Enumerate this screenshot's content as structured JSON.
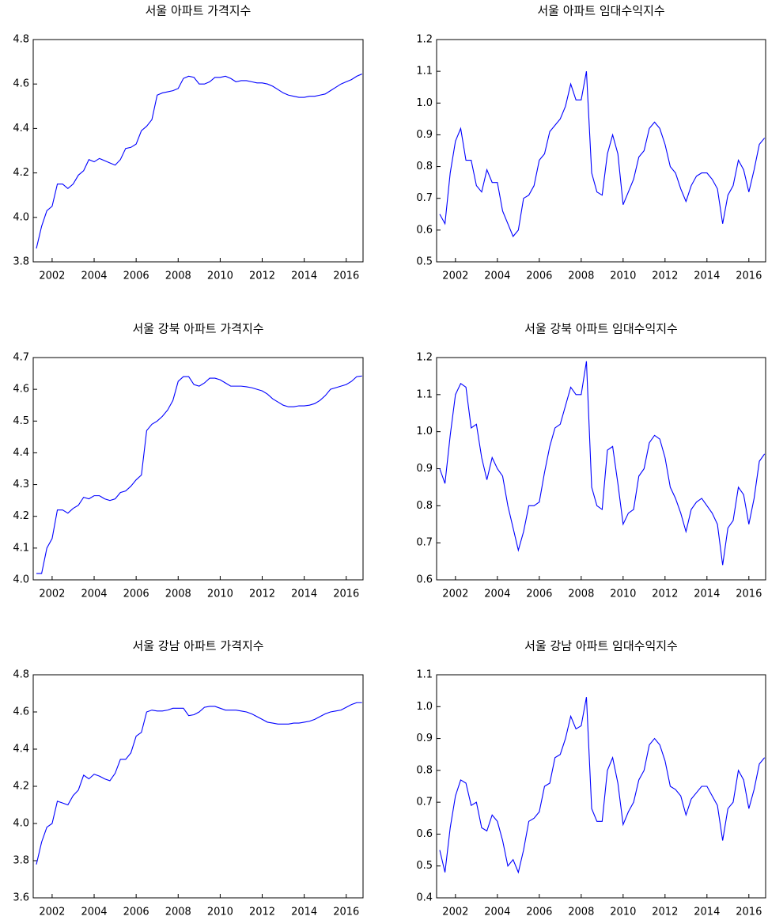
{
  "chart_data": [
    {
      "type": "line",
      "title": "서울 아파트 가격지수",
      "color": "#0000ff",
      "x": [
        2001.25,
        2001.5,
        2001.75,
        2002,
        2002.25,
        2002.5,
        2002.75,
        2003,
        2003.25,
        2003.5,
        2003.75,
        2004,
        2004.25,
        2004.5,
        2004.75,
        2005,
        2005.25,
        2005.5,
        2005.75,
        2006,
        2006.25,
        2006.5,
        2006.75,
        2007,
        2007.25,
        2007.5,
        2007.75,
        2008,
        2008.25,
        2008.5,
        2008.75,
        2009,
        2009.25,
        2009.5,
        2009.75,
        2010,
        2010.25,
        2010.5,
        2010.75,
        2011,
        2011.25,
        2011.5,
        2011.75,
        2012,
        2012.25,
        2012.5,
        2012.75,
        2013,
        2013.25,
        2013.5,
        2013.75,
        2014,
        2014.25,
        2014.5,
        2014.75,
        2015,
        2015.25,
        2015.5,
        2015.75,
        2016,
        2016.25,
        2016.5,
        2016.75
      ],
      "values": [
        3.86,
        3.96,
        4.03,
        4.05,
        4.15,
        4.15,
        4.13,
        4.15,
        4.19,
        4.21,
        4.26,
        4.25,
        4.265,
        4.255,
        4.245,
        4.235,
        4.26,
        4.31,
        4.315,
        4.33,
        4.39,
        4.41,
        4.44,
        4.55,
        4.56,
        4.565,
        4.57,
        4.58,
        4.625,
        4.635,
        4.63,
        4.6,
        4.6,
        4.61,
        4.63,
        4.63,
        4.635,
        4.625,
        4.61,
        4.615,
        4.615,
        4.61,
        4.605,
        4.605,
        4.6,
        4.59,
        4.575,
        4.56,
        4.55,
        4.545,
        4.54,
        4.54,
        4.545,
        4.545,
        4.55,
        4.555,
        4.57,
        4.585,
        4.6,
        4.61,
        4.62,
        4.635,
        4.645
      ],
      "xlim": [
        2001.1,
        2016.8
      ],
      "xticks": [
        2002,
        2004,
        2006,
        2008,
        2010,
        2012,
        2014,
        2016
      ],
      "ylim": [
        3.8,
        4.8
      ],
      "yticks": [
        3.8,
        {
          "value": 4,
          "label": "4.0"
        },
        4.2,
        4.4,
        4.6,
        4.8
      ]
    },
    {
      "type": "line",
      "title": "서울 아파트 임대수익지수",
      "color": "#0000ff",
      "x": [
        2001.25,
        2001.5,
        2001.75,
        2002,
        2002.25,
        2002.5,
        2002.75,
        2003,
        2003.25,
        2003.5,
        2003.75,
        2004,
        2004.25,
        2004.5,
        2004.75,
        2005,
        2005.25,
        2005.5,
        2005.75,
        2006,
        2006.25,
        2006.5,
        2006.75,
        2007,
        2007.25,
        2007.5,
        2007.75,
        2008,
        2008.25,
        2008.5,
        2008.75,
        2009,
        2009.25,
        2009.5,
        2009.75,
        2010,
        2010.25,
        2010.5,
        2010.75,
        2011,
        2011.25,
        2011.5,
        2011.75,
        2012,
        2012.25,
        2012.5,
        2012.75,
        2013,
        2013.25,
        2013.5,
        2013.75,
        2014,
        2014.25,
        2014.5,
        2014.75,
        2015,
        2015.25,
        2015.5,
        2015.75,
        2016,
        2016.25,
        2016.5,
        2016.75
      ],
      "values": [
        0.65,
        0.62,
        0.78,
        0.88,
        0.92,
        0.82,
        0.82,
        0.74,
        0.72,
        0.79,
        0.75,
        0.75,
        0.66,
        0.62,
        0.58,
        0.6,
        0.7,
        0.71,
        0.74,
        0.82,
        0.84,
        0.91,
        0.93,
        0.95,
        0.99,
        1.06,
        1.01,
        1.01,
        1.1,
        0.78,
        0.72,
        0.71,
        0.84,
        0.9,
        0.84,
        0.68,
        0.72,
        0.76,
        0.83,
        0.85,
        0.92,
        0.94,
        0.92,
        0.87,
        0.8,
        0.78,
        0.73,
        0.69,
        0.74,
        0.77,
        0.78,
        0.78,
        0.76,
        0.73,
        0.62,
        0.71,
        0.74,
        0.82,
        0.79,
        0.72,
        0.79,
        0.87,
        0.89
      ],
      "xlim": [
        2001.1,
        2016.8
      ],
      "xticks": [
        2002,
        2004,
        2006,
        2008,
        2010,
        2012,
        2014,
        2016
      ],
      "ylim": [
        0.5,
        1.2
      ],
      "yticks": [
        0.5,
        0.6,
        0.7,
        0.8,
        0.9,
        {
          "value": 1,
          "label": "1.0"
        },
        1.1,
        1.2
      ]
    },
    {
      "type": "line",
      "title": "서울 강북 아파트 가격지수",
      "color": "#0000ff",
      "x": [
        2001.25,
        2001.5,
        2001.75,
        2002,
        2002.25,
        2002.5,
        2002.75,
        2003,
        2003.25,
        2003.5,
        2003.75,
        2004,
        2004.25,
        2004.5,
        2004.75,
        2005,
        2005.25,
        2005.5,
        2005.75,
        2006,
        2006.25,
        2006.5,
        2006.75,
        2007,
        2007.25,
        2007.5,
        2007.75,
        2008,
        2008.25,
        2008.5,
        2008.75,
        2009,
        2009.25,
        2009.5,
        2009.75,
        2010,
        2010.25,
        2010.5,
        2010.75,
        2011,
        2011.25,
        2011.5,
        2011.75,
        2012,
        2012.25,
        2012.5,
        2012.75,
        2013,
        2013.25,
        2013.5,
        2013.75,
        2014,
        2014.25,
        2014.5,
        2014.75,
        2015,
        2015.25,
        2015.5,
        2015.75,
        2016,
        2016.25,
        2016.5,
        2016.75
      ],
      "values": [
        4.02,
        4.02,
        4.1,
        4.13,
        4.22,
        4.22,
        4.21,
        4.225,
        4.235,
        4.26,
        4.255,
        4.265,
        4.265,
        4.255,
        4.25,
        4.255,
        4.275,
        4.28,
        4.295,
        4.315,
        4.33,
        4.47,
        4.49,
        4.5,
        4.515,
        4.535,
        4.565,
        4.625,
        4.64,
        4.64,
        4.615,
        4.61,
        4.62,
        4.635,
        4.635,
        4.63,
        4.62,
        4.61,
        4.61,
        4.61,
        4.608,
        4.605,
        4.6,
        4.595,
        4.585,
        4.57,
        4.56,
        4.55,
        4.545,
        4.545,
        4.548,
        4.548,
        4.55,
        4.555,
        4.565,
        4.58,
        4.6,
        4.605,
        4.61,
        4.615,
        4.625,
        4.64,
        4.642
      ],
      "xlim": [
        2001.1,
        2016.8
      ],
      "xticks": [
        2002,
        2004,
        2006,
        2008,
        2010,
        2012,
        2014,
        2016
      ],
      "ylim": [
        4,
        4.7
      ],
      "yticks": [
        {
          "value": 4,
          "label": "4.0"
        },
        4.1,
        4.2,
        4.3,
        4.4,
        4.5,
        4.6,
        4.7
      ]
    },
    {
      "type": "line",
      "title": "서울 강북 아파트 임대수익지수",
      "color": "#0000ff",
      "x": [
        2001.25,
        2001.5,
        2001.75,
        2002,
        2002.25,
        2002.5,
        2002.75,
        2003,
        2003.25,
        2003.5,
        2003.75,
        2004,
        2004.25,
        2004.5,
        2004.75,
        2005,
        2005.25,
        2005.5,
        2005.75,
        2006,
        2006.25,
        2006.5,
        2006.75,
        2007,
        2007.25,
        2007.5,
        2007.75,
        2008,
        2008.25,
        2008.5,
        2008.75,
        2009,
        2009.25,
        2009.5,
        2009.75,
        2010,
        2010.25,
        2010.5,
        2010.75,
        2011,
        2011.25,
        2011.5,
        2011.75,
        2012,
        2012.25,
        2012.5,
        2012.75,
        2013,
        2013.25,
        2013.5,
        2013.75,
        2014,
        2014.25,
        2014.5,
        2014.75,
        2015,
        2015.25,
        2015.5,
        2015.75,
        2016,
        2016.25,
        2016.5,
        2016.75
      ],
      "values": [
        0.9,
        0.86,
        0.99,
        1.1,
        1.13,
        1.12,
        1.01,
        1.02,
        0.93,
        0.87,
        0.93,
        0.9,
        0.88,
        0.8,
        0.74,
        0.68,
        0.73,
        0.8,
        0.8,
        0.81,
        0.89,
        0.96,
        1.01,
        1.02,
        1.07,
        1.12,
        1.1,
        1.1,
        1.19,
        0.85,
        0.8,
        0.79,
        0.95,
        0.96,
        0.86,
        0.75,
        0.78,
        0.79,
        0.88,
        0.9,
        0.97,
        0.99,
        0.98,
        0.93,
        0.85,
        0.82,
        0.78,
        0.73,
        0.79,
        0.81,
        0.82,
        0.8,
        0.78,
        0.75,
        0.64,
        0.74,
        0.76,
        0.85,
        0.83,
        0.75,
        0.82,
        0.92,
        0.94
      ],
      "xlim": [
        2001.1,
        2016.8
      ],
      "xticks": [
        2002,
        2004,
        2006,
        2008,
        2010,
        2012,
        2014,
        2016
      ],
      "ylim": [
        0.6,
        1.2
      ],
      "yticks": [
        0.6,
        0.7,
        0.8,
        0.9,
        {
          "value": 1,
          "label": "1.0"
        },
        1.1,
        1.2
      ]
    },
    {
      "type": "line",
      "title": "서울 강남 아파트 가격지수",
      "color": "#0000ff",
      "x": [
        2001.25,
        2001.5,
        2001.75,
        2002,
        2002.25,
        2002.5,
        2002.75,
        2003,
        2003.25,
        2003.5,
        2003.75,
        2004,
        2004.25,
        2004.5,
        2004.75,
        2005,
        2005.25,
        2005.5,
        2005.75,
        2006,
        2006.25,
        2006.5,
        2006.75,
        2007,
        2007.25,
        2007.5,
        2007.75,
        2008,
        2008.25,
        2008.5,
        2008.75,
        2009,
        2009.25,
        2009.5,
        2009.75,
        2010,
        2010.25,
        2010.5,
        2010.75,
        2011,
        2011.25,
        2011.5,
        2011.75,
        2012,
        2012.25,
        2012.5,
        2012.75,
        2013,
        2013.25,
        2013.5,
        2013.75,
        2014,
        2014.25,
        2014.5,
        2014.75,
        2015,
        2015.25,
        2015.5,
        2015.75,
        2016,
        2016.25,
        2016.5,
        2016.75
      ],
      "values": [
        3.78,
        3.9,
        3.98,
        4,
        4.12,
        4.11,
        4.1,
        4.15,
        4.18,
        4.26,
        4.24,
        4.265,
        4.255,
        4.24,
        4.23,
        4.27,
        4.345,
        4.345,
        4.38,
        4.47,
        4.49,
        4.6,
        4.61,
        4.605,
        4.605,
        4.61,
        4.62,
        4.62,
        4.62,
        4.58,
        4.585,
        4.6,
        4.625,
        4.63,
        4.63,
        4.62,
        4.61,
        4.61,
        4.61,
        4.605,
        4.6,
        4.59,
        4.575,
        4.56,
        4.545,
        4.54,
        4.535,
        4.535,
        4.535,
        4.54,
        4.54,
        4.545,
        4.55,
        4.56,
        4.575,
        4.59,
        4.6,
        4.605,
        4.61,
        4.625,
        4.64,
        4.65,
        4.65
      ],
      "xlim": [
        2001.1,
        2016.8
      ],
      "xticks": [
        2002,
        2004,
        2006,
        2008,
        2010,
        2012,
        2014,
        2016
      ],
      "ylim": [
        3.6,
        4.8
      ],
      "yticks": [
        3.6,
        3.8,
        {
          "value": 4,
          "label": "4.0"
        },
        4.2,
        4.4,
        4.6,
        4.8
      ]
    },
    {
      "type": "line",
      "title": "서울 강남 아파트 임대수익지수",
      "color": "#0000ff",
      "x": [
        2001.25,
        2001.5,
        2001.75,
        2002,
        2002.25,
        2002.5,
        2002.75,
        2003,
        2003.25,
        2003.5,
        2003.75,
        2004,
        2004.25,
        2004.5,
        2004.75,
        2005,
        2005.25,
        2005.5,
        2005.75,
        2006,
        2006.25,
        2006.5,
        2006.75,
        2007,
        2007.25,
        2007.5,
        2007.75,
        2008,
        2008.25,
        2008.5,
        2008.75,
        2009,
        2009.25,
        2009.5,
        2009.75,
        2010,
        2010.25,
        2010.5,
        2010.75,
        2011,
        2011.25,
        2011.5,
        2011.75,
        2012,
        2012.25,
        2012.5,
        2012.75,
        2013,
        2013.25,
        2013.5,
        2013.75,
        2014,
        2014.25,
        2014.5,
        2014.75,
        2015,
        2015.25,
        2015.5,
        2015.75,
        2016,
        2016.25,
        2016.5,
        2016.75
      ],
      "values": [
        0.55,
        0.48,
        0.62,
        0.72,
        0.77,
        0.76,
        0.69,
        0.7,
        0.62,
        0.61,
        0.66,
        0.64,
        0.58,
        0.5,
        0.52,
        0.48,
        0.55,
        0.64,
        0.65,
        0.67,
        0.75,
        0.76,
        0.84,
        0.85,
        0.9,
        0.97,
        0.93,
        0.94,
        1.03,
        0.68,
        0.64,
        0.64,
        0.8,
        0.84,
        0.76,
        0.63,
        0.67,
        0.7,
        0.77,
        0.8,
        0.88,
        0.9,
        0.88,
        0.83,
        0.75,
        0.74,
        0.72,
        0.66,
        0.71,
        0.73,
        0.75,
        0.75,
        0.72,
        0.69,
        0.58,
        0.68,
        0.7,
        0.8,
        0.77,
        0.68,
        0.74,
        0.82,
        0.84
      ],
      "xlim": [
        2001.1,
        2016.8
      ],
      "xticks": [
        2002,
        2004,
        2006,
        2008,
        2010,
        2012,
        2014,
        2016
      ],
      "ylim": [
        0.4,
        1.1
      ],
      "yticks": [
        0.4,
        0.5,
        0.6,
        0.7,
        0.8,
        0.9,
        {
          "value": 1,
          "label": "1.0"
        },
        1.1
      ]
    }
  ]
}
